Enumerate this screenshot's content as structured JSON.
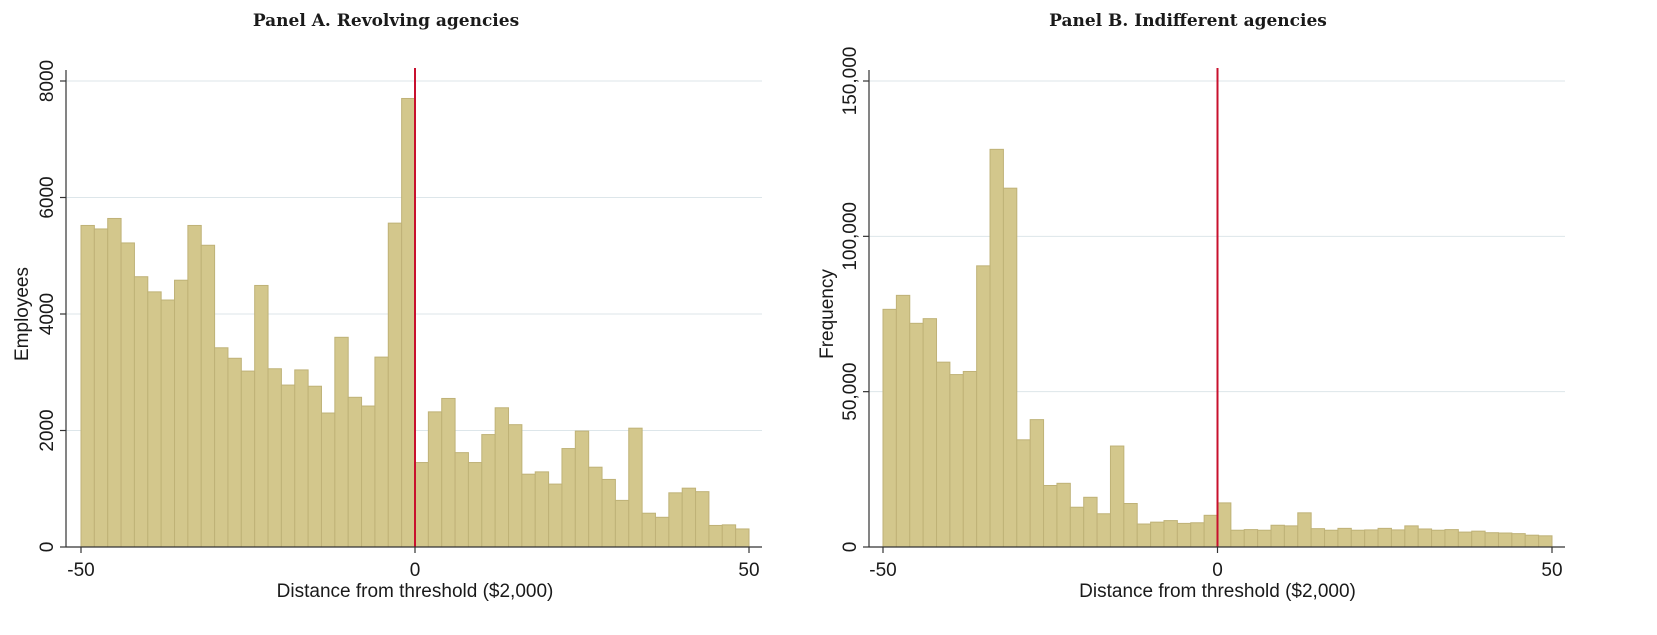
{
  "colors": {
    "bar_fill": "#d3c78c",
    "bar_edge": "#bfb277",
    "threshold": "#c8102e"
  },
  "chart_data": [
    {
      "type": "bar",
      "title": "Panel A. Revolving agencies",
      "xlabel": "Distance from threshold ($2,000)",
      "ylabel": "Employees",
      "xlim": [
        -50,
        50
      ],
      "ylim": [
        0,
        8000
      ],
      "xticks": [
        -50,
        0,
        50
      ],
      "xtick_labels": [
        "-50",
        "0",
        "50"
      ],
      "yticks": [
        0,
        2000,
        4000,
        6000,
        8000
      ],
      "ytick_labels": [
        "0",
        "2000",
        "4000",
        "6000",
        "8000"
      ],
      "grid": true,
      "threshold_x": 0,
      "bin_width": 2,
      "x": [
        -50,
        -48,
        -46,
        -44,
        -42,
        -40,
        -38,
        -36,
        -34,
        -32,
        -30,
        -28,
        -26,
        -24,
        -22,
        -20,
        -18,
        -16,
        -14,
        -12,
        -10,
        -8,
        -6,
        -4,
        -2,
        0,
        2,
        4,
        6,
        8,
        10,
        12,
        14,
        16,
        18,
        20,
        22,
        24,
        26,
        28,
        30,
        32,
        34,
        36,
        38,
        40,
        42,
        44,
        46,
        48
      ],
      "values": [
        5520,
        5460,
        5640,
        5220,
        4640,
        4380,
        4240,
        4580,
        5520,
        5180,
        3420,
        3240,
        3020,
        4490,
        3060,
        2780,
        3040,
        2760,
        2300,
        3600,
        2570,
        2420,
        3260,
        5560,
        7700,
        1450,
        2320,
        2550,
        1620,
        1450,
        1930,
        2390,
        2100,
        1250,
        1290,
        1080,
        1690,
        1990,
        1370,
        1160,
        800,
        2040,
        580,
        510,
        930,
        1010,
        950,
        370,
        380,
        310
      ]
    },
    {
      "type": "bar",
      "title": "Panel B. Indifferent agencies",
      "xlabel": "Distance from threshold ($2,000)",
      "ylabel": "Frequency",
      "xlim": [
        -50,
        50
      ],
      "ylim": [
        0,
        150000
      ],
      "xticks": [
        -50,
        0,
        50
      ],
      "xtick_labels": [
        "-50",
        "0",
        "50"
      ],
      "yticks": [
        0,
        50000,
        100000,
        150000
      ],
      "ytick_labels": [
        "0",
        "50,000",
        "100,000",
        "150,000"
      ],
      "grid": true,
      "threshold_x": 0,
      "bin_width": 2,
      "x": [
        -50,
        -48,
        -46,
        -44,
        -42,
        -40,
        -38,
        -36,
        -34,
        -32,
        -30,
        -28,
        -26,
        -24,
        -22,
        -20,
        -18,
        -16,
        -14,
        -12,
        -10,
        -8,
        -6,
        -4,
        -2,
        0,
        2,
        4,
        6,
        8,
        10,
        12,
        14,
        16,
        18,
        20,
        22,
        24,
        26,
        28,
        30,
        32,
        34,
        36,
        38,
        40,
        42,
        44,
        46,
        48
      ],
      "values": [
        76500,
        81000,
        72000,
        73500,
        59500,
        55500,
        56500,
        90500,
        128000,
        115500,
        34500,
        41000,
        19800,
        20500,
        12800,
        16000,
        10700,
        32500,
        14000,
        7400,
        8000,
        8500,
        7600,
        7800,
        10200,
        14200,
        5400,
        5600,
        5400,
        7000,
        6800,
        11000,
        5900,
        5400,
        6000,
        5400,
        5500,
        6000,
        5500,
        6800,
        5800,
        5400,
        5600,
        4800,
        5100,
        4600,
        4500,
        4300,
        3800,
        3600
      ]
    }
  ]
}
